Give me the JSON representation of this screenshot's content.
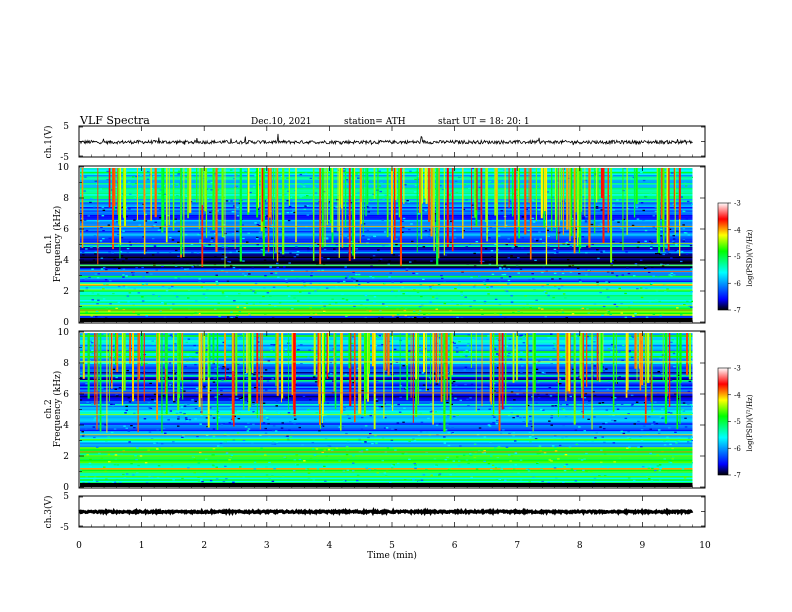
{
  "header": {
    "title": "VLF  Spectra",
    "date": "Dec.10, 2021",
    "station": "station= ATH",
    "start": "start  UT  =    18: 20: 1"
  },
  "chart_data": [
    {
      "type": "line",
      "name": "ch1_waveform",
      "ylabel": "ch.1(V)",
      "ylim": [
        -5,
        5
      ],
      "yticks": [
        "5",
        "-5"
      ],
      "x_range": [
        0,
        9.8
      ],
      "baseline_v": -0.2,
      "typical_amplitude_v": 0.6
    },
    {
      "type": "heatmap",
      "name": "ch1_spectrogram",
      "ylabel": "ch.1\nFrequency  (kHz)",
      "ylim": [
        0,
        10
      ],
      "yticks": [
        "0",
        "2",
        "4",
        "6",
        "8",
        "10"
      ],
      "x_range": [
        0,
        9.8
      ],
      "colorbar": {
        "label": "log(PSD)(V²/Hz)",
        "range": [
          -7,
          -3
        ],
        "ticks": [
          "-3",
          "-4",
          "-5",
          "-6",
          "-7"
        ],
        "colors": [
          "#000000",
          "#0000ff",
          "#00ffff",
          "#00ff00",
          "#ffff00",
          "#ff0000",
          "#ffffff"
        ]
      },
      "bands_khz": [
        {
          "f0": 0.0,
          "f1": 0.4,
          "level": -6.6
        },
        {
          "f0": 0.4,
          "f1": 1.0,
          "level": -4.8
        },
        {
          "f0": 1.0,
          "f1": 1.6,
          "level": -5.6
        },
        {
          "f0": 1.6,
          "f1": 2.6,
          "level": -5.4
        },
        {
          "f0": 2.6,
          "f1": 3.5,
          "level": -6.1
        },
        {
          "f0": 3.5,
          "f1": 4.5,
          "level": -6.7
        },
        {
          "f0": 4.5,
          "f1": 5.5,
          "level": -6.4
        },
        {
          "f0": 5.5,
          "f1": 8.0,
          "level": -6.2
        },
        {
          "f0": 8.0,
          "f1": 10.0,
          "level": -5.6
        }
      ]
    },
    {
      "type": "heatmap",
      "name": "ch2_spectrogram",
      "ylabel": "ch.2\nFrequency  (kHz)",
      "ylim": [
        0,
        10
      ],
      "yticks": [
        "0",
        "2",
        "4",
        "6",
        "8",
        "10"
      ],
      "x_range": [
        0,
        9.8
      ],
      "colorbar": {
        "label": "log(PSD)(V²/Hz)",
        "range": [
          -7,
          -3
        ],
        "ticks": [
          "-3",
          "-4",
          "-5",
          "-6",
          "-7"
        ],
        "colors": [
          "#000000",
          "#0000ff",
          "#00ffff",
          "#00ff00",
          "#ffff00",
          "#ff0000",
          "#ffffff"
        ]
      },
      "bands_khz": [
        {
          "f0": 0.0,
          "f1": 0.5,
          "level": -5.9
        },
        {
          "f0": 0.5,
          "f1": 1.6,
          "level": -5.3
        },
        {
          "f0": 1.6,
          "f1": 2.6,
          "level": -5.0
        },
        {
          "f0": 2.6,
          "f1": 3.6,
          "level": -5.9
        },
        {
          "f0": 3.6,
          "f1": 4.6,
          "level": -6.2
        },
        {
          "f0": 4.6,
          "f1": 5.2,
          "level": -5.8
        },
        {
          "f0": 5.2,
          "f1": 8.0,
          "level": -6.5
        },
        {
          "f0": 8.0,
          "f1": 10.0,
          "level": -5.8
        }
      ]
    },
    {
      "type": "line",
      "name": "ch3_waveform",
      "ylabel": "ch.3(V)",
      "ylim": [
        -5,
        5
      ],
      "yticks": [
        "5",
        "-5"
      ],
      "x_range": [
        0,
        9.8
      ],
      "baseline_v": -0.1,
      "typical_amplitude_v": 0.3
    }
  ],
  "x_axis": {
    "label": "Time  (min)",
    "ticks": [
      "0",
      "1",
      "2",
      "3",
      "4",
      "5",
      "6",
      "7",
      "8",
      "9",
      "10"
    ],
    "range": [
      0,
      10
    ]
  }
}
